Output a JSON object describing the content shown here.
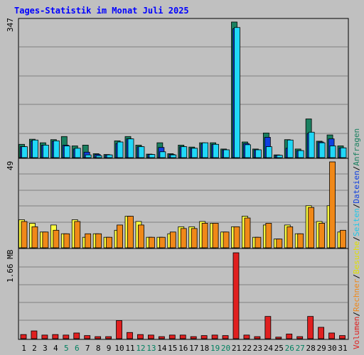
{
  "chart_data": {
    "type": "bar",
    "title": "Tages-Statistik im Monat Juli 2025",
    "days": [
      "1",
      "2",
      "3",
      "4",
      "5",
      "6",
      "7",
      "8",
      "9",
      "10",
      "11",
      "12",
      "13",
      "14",
      "15",
      "16",
      "17",
      "18",
      "19",
      "20",
      "21",
      "22",
      "23",
      "24",
      "25",
      "26",
      "27",
      "28",
      "29",
      "30",
      "31"
    ],
    "weekend_days": [
      "5",
      "6",
      "12",
      "13",
      "19",
      "20",
      "26",
      "27"
    ],
    "top_panel": {
      "ymax_label": "347",
      "ymax": 347,
      "series": [
        {
          "name": "Anfragen",
          "color": "#1a8060",
          "values": [
            34,
            47,
            38,
            46,
            54,
            30,
            32,
            10,
            8,
            43,
            54,
            32,
            9,
            38,
            10,
            32,
            27,
            38,
            38,
            22,
            347,
            40,
            22,
            63,
            7,
            46,
            22,
            99,
            42,
            58,
            30
          ]
        },
        {
          "name": "Dateien",
          "color": "#1040e0",
          "values": [
            28,
            43,
            32,
            42,
            32,
            22,
            14,
            8,
            7,
            36,
            48,
            28,
            8,
            26,
            8,
            28,
            24,
            35,
            34,
            20,
            330,
            36,
            20,
            52,
            6,
            24,
            18,
            62,
            40,
            48,
            25
          ]
        },
        {
          "name": "Seiten",
          "color": "#20d8f8",
          "values": [
            28,
            45,
            32,
            43,
            30,
            24,
            7,
            5,
            7,
            40,
            48,
            28,
            8,
            15,
            7,
            28,
            24,
            38,
            34,
            20,
            333,
            33,
            20,
            28,
            6,
            45,
            18,
            65,
            38,
            30,
            25
          ]
        }
      ]
    },
    "middle_panel": {
      "ymax_label": "49",
      "ymax": 49,
      "series": [
        {
          "name": "Besuche",
          "color": "#ffff40",
          "values": [
            16,
            14,
            9,
            13,
            8,
            16,
            6,
            8,
            6,
            10,
            18,
            15,
            6,
            6,
            8,
            12,
            12,
            15,
            14,
            9,
            12,
            18,
            6,
            13,
            5,
            13,
            8,
            24,
            15,
            24,
            9
          ]
        },
        {
          "name": "Rechner",
          "color": "#f08818",
          "values": [
            15,
            12,
            9,
            10,
            8,
            15,
            8,
            8,
            6,
            13,
            18,
            13,
            6,
            6,
            9,
            11,
            11,
            14,
            14,
            9,
            12,
            17,
            6,
            14,
            5,
            12,
            8,
            23,
            14,
            49,
            10
          ]
        }
      ]
    },
    "bottom_panel": {
      "ymax_label": "1.66 MB",
      "series": [
        {
          "name": "Volumen",
          "color": "#e02020",
          "values_mb": [
            0.08,
            0.15,
            0.07,
            0.08,
            0.07,
            0.11,
            0.06,
            0.04,
            0.04,
            0.35,
            0.12,
            0.08,
            0.07,
            0.04,
            0.07,
            0.07,
            0.04,
            0.06,
            0.07,
            0.06,
            1.66,
            0.07,
            0.04,
            0.43,
            0.03,
            0.09,
            0.04,
            0.43,
            0.22,
            0.11,
            0.06
          ]
        }
      ]
    },
    "legend": [
      "Volumen",
      "Rechner",
      "Besuche",
      "Seiten",
      "Dateien",
      "Anfragen"
    ],
    "legend_separator": "/"
  },
  "colors": {
    "background": "#c0c0c0",
    "plot_background": "#c0c0c0",
    "title": "#0000ff",
    "weekday": "#000000",
    "weekend": "#00805f",
    "gridline": "#808080"
  }
}
